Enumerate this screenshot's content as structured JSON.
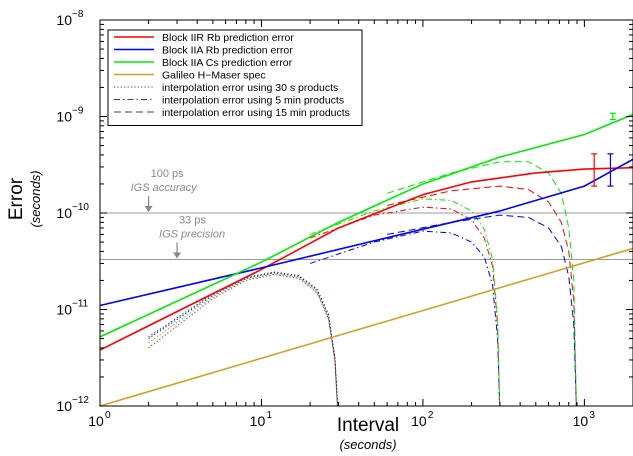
{
  "chart_data": {
    "type": "line",
    "x_scale": "log",
    "y_scale": "log",
    "xlim": [
      1,
      2000
    ],
    "ylim": [
      1e-12,
      1e-08
    ],
    "x_ticks": [
      {
        "base": "10",
        "exp": "0",
        "value": 1
      },
      {
        "base": "10",
        "exp": "1",
        "value": 10
      },
      {
        "base": "10",
        "exp": "2",
        "value": 100
      },
      {
        "base": "10",
        "exp": "3",
        "value": 1000
      }
    ],
    "y_ticks": [
      {
        "base": "10",
        "exp": "−12",
        "value": 1e-12
      },
      {
        "base": "10",
        "exp": "−11",
        "value": 1e-11
      },
      {
        "base": "10",
        "exp": "−10",
        "value": 1e-10
      },
      {
        "base": "10",
        "exp": "−9",
        "value": 1e-09
      },
      {
        "base": "10",
        "exp": "−8",
        "value": 1e-08
      }
    ],
    "xlabel": "Interval",
    "xlabel_unit": "(seconds)",
    "ylabel": "Error",
    "ylabel_unit": "(seconds)",
    "grid": false,
    "legend_position": "top-left",
    "series": [
      {
        "name": "Block IIR Rb prediction error",
        "color": "#ff0000",
        "style": "solid",
        "points": [
          [
            1,
            3.8e-12
          ],
          [
            10,
            2.6e-11
          ],
          [
            30,
            7e-11
          ],
          [
            100,
            1.55e-10
          ],
          [
            200,
            2.1e-10
          ],
          [
            500,
            2.6e-10
          ],
          [
            1000,
            2.85e-10
          ],
          [
            2000,
            2.95e-10
          ]
        ]
      },
      {
        "name": "Block IIA Rb prediction error",
        "color": "#0000ff",
        "style": "solid",
        "points": [
          [
            1,
            1.1e-11
          ],
          [
            10,
            2.7e-11
          ],
          [
            100,
            6.8e-11
          ],
          [
            300,
            1.05e-10
          ],
          [
            1000,
            1.9e-10
          ],
          [
            2000,
            3.6e-10
          ]
        ]
      },
      {
        "name": "Block IIA Cs prediction error",
        "color": "#00ee00",
        "style": "solid",
        "points": [
          [
            1,
            5.2e-12
          ],
          [
            10,
            3.1e-11
          ],
          [
            30,
            8e-11
          ],
          [
            100,
            2e-10
          ],
          [
            300,
            3.8e-10
          ],
          [
            1000,
            6.5e-10
          ],
          [
            2000,
            1.05e-09
          ]
        ]
      },
      {
        "name": "Galileo H−Maser spec",
        "color": "#d4a020",
        "style": "solid",
        "points": [
          [
            1,
            1e-12
          ],
          [
            2000,
            4.3e-11
          ]
        ]
      },
      {
        "name": "interpolation error using 30 s products",
        "color": "#444444",
        "style": "dotted",
        "points": []
      },
      {
        "name": "interpolation error using 5 min products",
        "color": "#444444",
        "style": "dashdot",
        "points": []
      },
      {
        "name": "interpolation error using 15 min products",
        "color": "#444444",
        "style": "dashed",
        "points": []
      }
    ],
    "interpolation_curves": [
      {
        "product": "30 s",
        "color": "#ff0000",
        "style": "dotted",
        "points": [
          [
            2,
            4e-12
          ],
          [
            5,
            1.3e-11
          ],
          [
            8,
            2e-11
          ],
          [
            12,
            2.3e-11
          ],
          [
            17,
            2.1e-11
          ],
          [
            22,
            1.5e-11
          ],
          [
            26,
            8e-12
          ],
          [
            28.5,
            3e-12
          ],
          [
            29.5,
            1e-12
          ]
        ]
      },
      {
        "product": "30 s",
        "color": "#0000ff",
        "style": "dotted",
        "points": [
          [
            2,
            5e-12
          ],
          [
            5,
            1.4e-11
          ],
          [
            8,
            2.1e-11
          ],
          [
            12,
            2.4e-11
          ],
          [
            17,
            2.2e-11
          ],
          [
            22,
            1.6e-11
          ],
          [
            26,
            8.5e-12
          ],
          [
            28.5,
            3e-12
          ],
          [
            29.6,
            1e-12
          ]
        ]
      },
      {
        "product": "30 s",
        "color": "#00ee00",
        "style": "dotted",
        "points": [
          [
            2,
            4.5e-12
          ],
          [
            5,
            1.35e-11
          ],
          [
            8,
            2.05e-11
          ],
          [
            12,
            2.35e-11
          ],
          [
            17,
            2.15e-11
          ],
          [
            22,
            1.55e-11
          ],
          [
            26,
            8.2e-12
          ],
          [
            28.5,
            3e-12
          ],
          [
            29.55,
            1e-12
          ]
        ]
      },
      {
        "product": "30 s",
        "color": "#222222",
        "style": "dotted",
        "points": [
          [
            2,
            5.2e-12
          ],
          [
            5,
            1.45e-11
          ],
          [
            8,
            2.15e-11
          ],
          [
            12,
            2.45e-11
          ],
          [
            17,
            2.25e-11
          ],
          [
            22,
            1.65e-11
          ],
          [
            26,
            9e-12
          ],
          [
            28.5,
            3.2e-12
          ],
          [
            29.7,
            1e-12
          ]
        ]
      },
      {
        "product": "5 min",
        "color": "#ff0000",
        "style": "dashdot",
        "points": [
          [
            20,
            5.5e-11
          ],
          [
            50,
            9.5e-11
          ],
          [
            100,
            1.15e-10
          ],
          [
            150,
            1.1e-10
          ],
          [
            200,
            8.5e-11
          ],
          [
            240,
            5.5e-11
          ],
          [
            270,
            2.8e-11
          ],
          [
            290,
            7e-12
          ],
          [
            298,
            1e-12
          ]
        ]
      },
      {
        "product": "5 min",
        "color": "#0000ff",
        "style": "dashdot",
        "points": [
          [
            20,
            3e-11
          ],
          [
            50,
            5e-11
          ],
          [
            100,
            6.5e-11
          ],
          [
            150,
            6.2e-11
          ],
          [
            200,
            5e-11
          ],
          [
            240,
            3.5e-11
          ],
          [
            270,
            1.8e-11
          ],
          [
            290,
            5e-12
          ],
          [
            299,
            1e-12
          ]
        ]
      },
      {
        "product": "5 min",
        "color": "#00ee00",
        "style": "dashdot",
        "points": [
          [
            20,
            6e-11
          ],
          [
            50,
            1.05e-10
          ],
          [
            100,
            1.4e-10
          ],
          [
            150,
            1.35e-10
          ],
          [
            200,
            1.05e-10
          ],
          [
            240,
            6.8e-11
          ],
          [
            270,
            3.3e-11
          ],
          [
            290,
            8e-12
          ],
          [
            299,
            1e-12
          ]
        ]
      },
      {
        "product": "15 min",
        "color": "#ff0000",
        "style": "dashed",
        "points": [
          [
            60,
            1.2e-10
          ],
          [
            150,
            1.7e-10
          ],
          [
            300,
            1.9e-10
          ],
          [
            450,
            1.75e-10
          ],
          [
            600,
            1.3e-10
          ],
          [
            720,
            8e-11
          ],
          [
            800,
            4e-11
          ],
          [
            860,
            1.2e-11
          ],
          [
            890,
            1e-12
          ]
        ]
      },
      {
        "product": "15 min",
        "color": "#0000ff",
        "style": "dashed",
        "points": [
          [
            60,
            6e-11
          ],
          [
            150,
            8e-11
          ],
          [
            300,
            9.5e-11
          ],
          [
            450,
            9e-11
          ],
          [
            600,
            7e-11
          ],
          [
            720,
            4.5e-11
          ],
          [
            800,
            2.2e-11
          ],
          [
            860,
            7e-12
          ],
          [
            892,
            1e-12
          ]
        ]
      },
      {
        "product": "15 min",
        "color": "#00ee00",
        "style": "dashed",
        "points": [
          [
            60,
            1.6e-10
          ],
          [
            150,
            2.6e-10
          ],
          [
            300,
            3.4e-10
          ],
          [
            450,
            3.4e-10
          ],
          [
            600,
            2.6e-10
          ],
          [
            720,
            1.6e-10
          ],
          [
            800,
            7e-11
          ],
          [
            860,
            2e-11
          ],
          [
            893,
            1e-12
          ]
        ]
      }
    ],
    "error_bars": [
      {
        "color": "#ff0000",
        "x": 1150,
        "y": 2.8e-10,
        "low": 1.9e-10,
        "high": 4.1e-10
      },
      {
        "color": "#0000ff",
        "x": 1450,
        "y": 2.8e-10,
        "low": 1.9e-10,
        "high": 4.1e-10
      },
      {
        "color": "#00ee00",
        "x": 1500,
        "y": 1e-09,
        "low": 9.3e-10,
        "high": 1.08e-09
      }
    ],
    "reference_lines": [
      {
        "y": 1e-10,
        "label": "100 ps",
        "sublabel": "IGS accuracy",
        "color": "#999999",
        "arrow_x": 2
      },
      {
        "y": 3.3e-11,
        "label": "33 ps",
        "sublabel": "IGS precision",
        "color": "#999999",
        "arrow_x": 3
      }
    ]
  }
}
